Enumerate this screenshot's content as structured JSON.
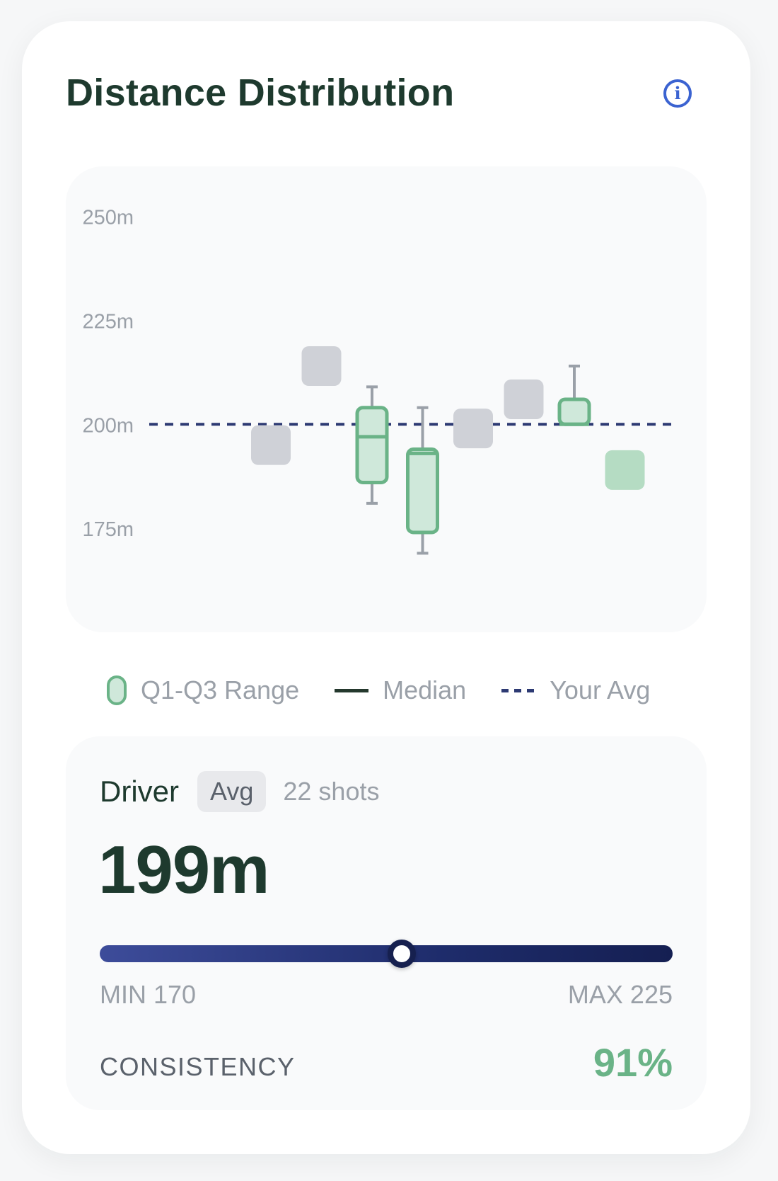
{
  "card": {
    "title": "Distance Distribution",
    "info_icon": "info-icon",
    "info_glyph": "i"
  },
  "chart_data": {
    "type": "boxplot",
    "y_ticks": [
      "250m",
      "225m",
      "200m",
      "175m"
    ],
    "y_tick_values": [
      250,
      225,
      200,
      175
    ],
    "ylim": [
      150,
      262
    ],
    "average_line": 200,
    "avg_color": "#2d3a73",
    "grid": false,
    "legend_position": "bottom",
    "legend": [
      {
        "label": "Q1-Q3 Range",
        "swatch": "box"
      },
      {
        "label": "Median",
        "swatch": "line"
      },
      {
        "label": "Your Avg",
        "swatch": "dash"
      }
    ],
    "items": [
      {
        "kind": "marker",
        "value": 195,
        "color": "#cfd1d7"
      },
      {
        "kind": "marker",
        "value": 214,
        "color": "#cfd1d7"
      },
      {
        "kind": "box",
        "q1": 186,
        "q3": 204,
        "median": 197,
        "min": 181,
        "max": 209
      },
      {
        "kind": "box",
        "q1": 174,
        "q3": 194,
        "median": 193,
        "min": 169,
        "max": 204
      },
      {
        "kind": "marker",
        "value": 199,
        "color": "#cfd1d7"
      },
      {
        "kind": "marker",
        "value": 206,
        "color": "#cfd1d7"
      },
      {
        "kind": "box",
        "q1": 200,
        "q3": 206,
        "median": 200,
        "min": 200,
        "max": 214
      },
      {
        "kind": "marker",
        "value": 189,
        "color": "#b5dcc3"
      }
    ],
    "colors": {
      "box_stroke": "#6ab387",
      "box_fill": "#cfe8da",
      "whisker": "#9aa0a8"
    }
  },
  "stats": {
    "club": "Driver",
    "badge": "Avg",
    "shots": "22 shots",
    "value": "199m",
    "min_label": "MIN 170",
    "max_label": "MAX 225",
    "range_min": 170,
    "range_max": 225,
    "range_value": 199,
    "consistency_label": "CONSISTENCY",
    "consistency_value": "91%"
  },
  "colors": {
    "title": "#1e3a2e",
    "accent_green": "#6ab387",
    "accent_blue": "#3b63d1",
    "navy": "#16204f"
  }
}
